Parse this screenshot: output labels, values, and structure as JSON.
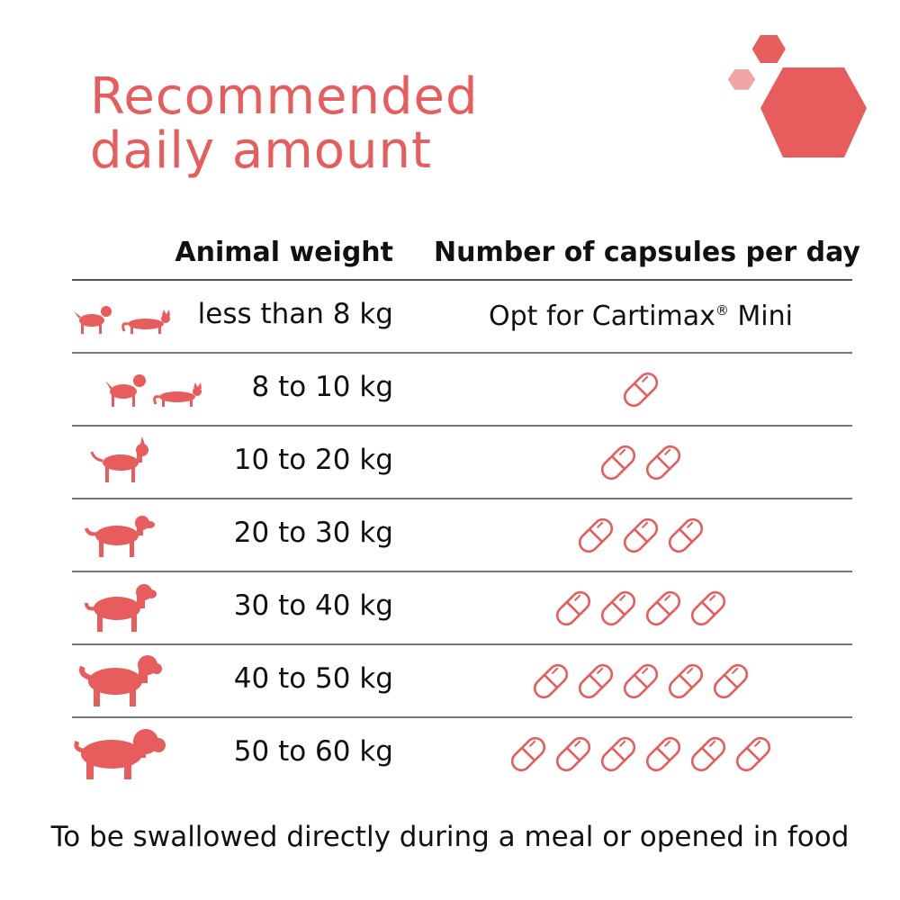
{
  "title": {
    "line1": "Recommended",
    "line2": "daily amount"
  },
  "table": {
    "header": {
      "weight": "Animal weight",
      "capsules": "Number of capsules per day"
    },
    "rows": [
      {
        "weight": "less than 8 kg",
        "capsules_text": "Opt for Cartimax",
        "capsules_sup": "®",
        "capsules_suffix": " Mini",
        "capsule_count": 0,
        "animals": [
          "small-dog-icon",
          "cat-icon"
        ]
      },
      {
        "weight": "8 to 10 kg",
        "capsule_count": 1,
        "animals": [
          "small-dog-icon",
          "cat-icon"
        ]
      },
      {
        "weight": "10 to 20 kg",
        "capsule_count": 2,
        "animals": [
          "medium-dog-icon"
        ]
      },
      {
        "weight": "20 to 30 kg",
        "capsule_count": 3,
        "animals": [
          "labrador-dog-icon"
        ]
      },
      {
        "weight": "30 to 40 kg",
        "capsule_count": 4,
        "animals": [
          "large-dog-icon"
        ]
      },
      {
        "weight": "40 to 50 kg",
        "capsule_count": 5,
        "animals": [
          "saint-bernard-dog-icon"
        ]
      },
      {
        "weight": "50 to 60 kg",
        "capsule_count": 6,
        "animals": [
          "mastiff-dog-icon"
        ]
      }
    ]
  },
  "footer": "To be swallowed directly during a meal or opened in food",
  "colors": {
    "accent": "#e75c5c",
    "accent_light": "#f2a3a3",
    "text": "#111111"
  }
}
